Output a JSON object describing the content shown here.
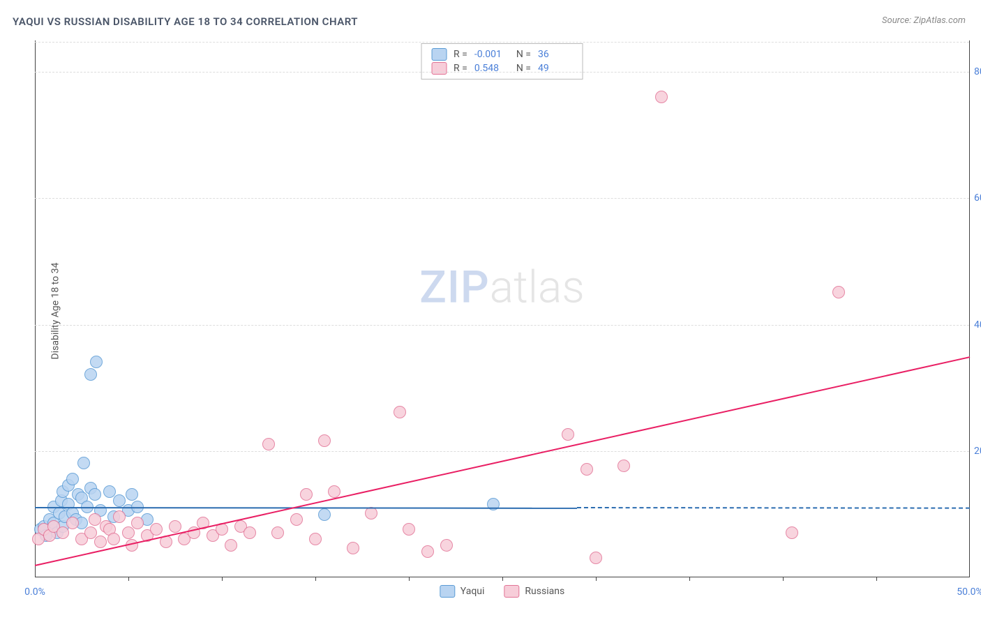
{
  "title": "YAQUI VS RUSSIAN DISABILITY AGE 18 TO 34 CORRELATION CHART",
  "source": "Source: ZipAtlas.com",
  "ylabel": "Disability Age 18 to 34",
  "watermark": {
    "part1": "ZIP",
    "part2": "atlas"
  },
  "chart": {
    "type": "scatter",
    "xlim": [
      0,
      50
    ],
    "ylim": [
      0,
      85
    ],
    "x_ticks_major": [
      0,
      50
    ],
    "x_ticks_minor": [
      5,
      10,
      15,
      20,
      25,
      30,
      35,
      40,
      45
    ],
    "x_tick_labels": {
      "0": "0.0%",
      "50": "50.0%"
    },
    "y_ticks": [
      20,
      40,
      60,
      80
    ],
    "y_tick_labels": {
      "20": "20.0%",
      "40": "40.0%",
      "60": "60.0%",
      "80": "80.0%"
    },
    "background_color": "#ffffff",
    "grid_color": "#dddddd",
    "axis_color": "#444444",
    "marker_radius": 9,
    "marker_stroke_width": 1.5,
    "series": [
      {
        "name": "Yaqui",
        "fill_color": "#b9d4f1",
        "stroke_color": "#5a9bd5",
        "trend_color": "#2b6cb0",
        "R": "-0.001",
        "N": "36",
        "trend": {
          "x1": 0,
          "y1": 11.2,
          "x2": 29,
          "y2": 11.1,
          "extend_to_x": 50
        },
        "points": [
          [
            0.3,
            7.5
          ],
          [
            0.5,
            8.0
          ],
          [
            0.6,
            6.5
          ],
          [
            0.8,
            9.0
          ],
          [
            1.0,
            8.5
          ],
          [
            1.0,
            11.0
          ],
          [
            1.2,
            7.0
          ],
          [
            1.3,
            10.0
          ],
          [
            1.4,
            12.0
          ],
          [
            1.5,
            8.0
          ],
          [
            1.5,
            13.5
          ],
          [
            1.6,
            9.5
          ],
          [
            1.8,
            11.5
          ],
          [
            1.8,
            14.5
          ],
          [
            2.0,
            10.0
          ],
          [
            2.0,
            15.5
          ],
          [
            2.2,
            9.0
          ],
          [
            2.3,
            13.0
          ],
          [
            2.5,
            8.5
          ],
          [
            2.5,
            12.5
          ],
          [
            2.6,
            18.0
          ],
          [
            2.8,
            11.0
          ],
          [
            3.0,
            14.0
          ],
          [
            3.0,
            32.0
          ],
          [
            3.2,
            13.0
          ],
          [
            3.3,
            34.0
          ],
          [
            3.5,
            10.5
          ],
          [
            4.0,
            13.5
          ],
          [
            4.2,
            9.5
          ],
          [
            4.5,
            12.0
          ],
          [
            5.0,
            10.5
          ],
          [
            5.2,
            13.0
          ],
          [
            5.5,
            11.0
          ],
          [
            6.0,
            9.0
          ],
          [
            15.5,
            9.8
          ],
          [
            24.5,
            11.5
          ]
        ]
      },
      {
        "name": "Russians",
        "fill_color": "#f7cdd9",
        "stroke_color": "#e27396",
        "trend_color": "#e91e63",
        "R": "0.548",
        "N": "49",
        "trend": {
          "x1": 0,
          "y1": 2.0,
          "x2": 50,
          "y2": 35.0
        },
        "points": [
          [
            0.2,
            6.0
          ],
          [
            0.5,
            7.5
          ],
          [
            0.8,
            6.5
          ],
          [
            1.0,
            8.0
          ],
          [
            1.5,
            7.0
          ],
          [
            2.0,
            8.5
          ],
          [
            2.5,
            6.0
          ],
          [
            3.0,
            7.0
          ],
          [
            3.2,
            9.0
          ],
          [
            3.5,
            5.5
          ],
          [
            3.8,
            8.0
          ],
          [
            4.0,
            7.5
          ],
          [
            4.2,
            6.0
          ],
          [
            4.5,
            9.5
          ],
          [
            5.0,
            7.0
          ],
          [
            5.2,
            5.0
          ],
          [
            5.5,
            8.5
          ],
          [
            6.0,
            6.5
          ],
          [
            6.5,
            7.5
          ],
          [
            7.0,
            5.5
          ],
          [
            7.5,
            8.0
          ],
          [
            8.0,
            6.0
          ],
          [
            8.5,
            7.0
          ],
          [
            9.0,
            8.5
          ],
          [
            9.5,
            6.5
          ],
          [
            10.0,
            7.5
          ],
          [
            10.5,
            5.0
          ],
          [
            11.0,
            8.0
          ],
          [
            11.5,
            7.0
          ],
          [
            12.5,
            21.0
          ],
          [
            13.0,
            7.0
          ],
          [
            14.0,
            9.0
          ],
          [
            14.5,
            13.0
          ],
          [
            15.0,
            6.0
          ],
          [
            15.5,
            21.5
          ],
          [
            16.0,
            13.5
          ],
          [
            17.0,
            4.5
          ],
          [
            18.0,
            10.0
          ],
          [
            19.5,
            26.0
          ],
          [
            20.0,
            7.5
          ],
          [
            21.0,
            4.0
          ],
          [
            22.0,
            5.0
          ],
          [
            28.5,
            22.5
          ],
          [
            29.5,
            17.0
          ],
          [
            30.0,
            3.0
          ],
          [
            31.5,
            17.5
          ],
          [
            33.5,
            76.0
          ],
          [
            40.5,
            7.0
          ],
          [
            43.0,
            45.0
          ]
        ]
      }
    ]
  },
  "legend_top": [
    {
      "swatch_series": 0,
      "r_label": "R =",
      "n_label": "N ="
    },
    {
      "swatch_series": 1,
      "r_label": "R =",
      "n_label": "N ="
    }
  ],
  "legend_bottom": [
    {
      "series": 0
    },
    {
      "series": 1
    }
  ]
}
